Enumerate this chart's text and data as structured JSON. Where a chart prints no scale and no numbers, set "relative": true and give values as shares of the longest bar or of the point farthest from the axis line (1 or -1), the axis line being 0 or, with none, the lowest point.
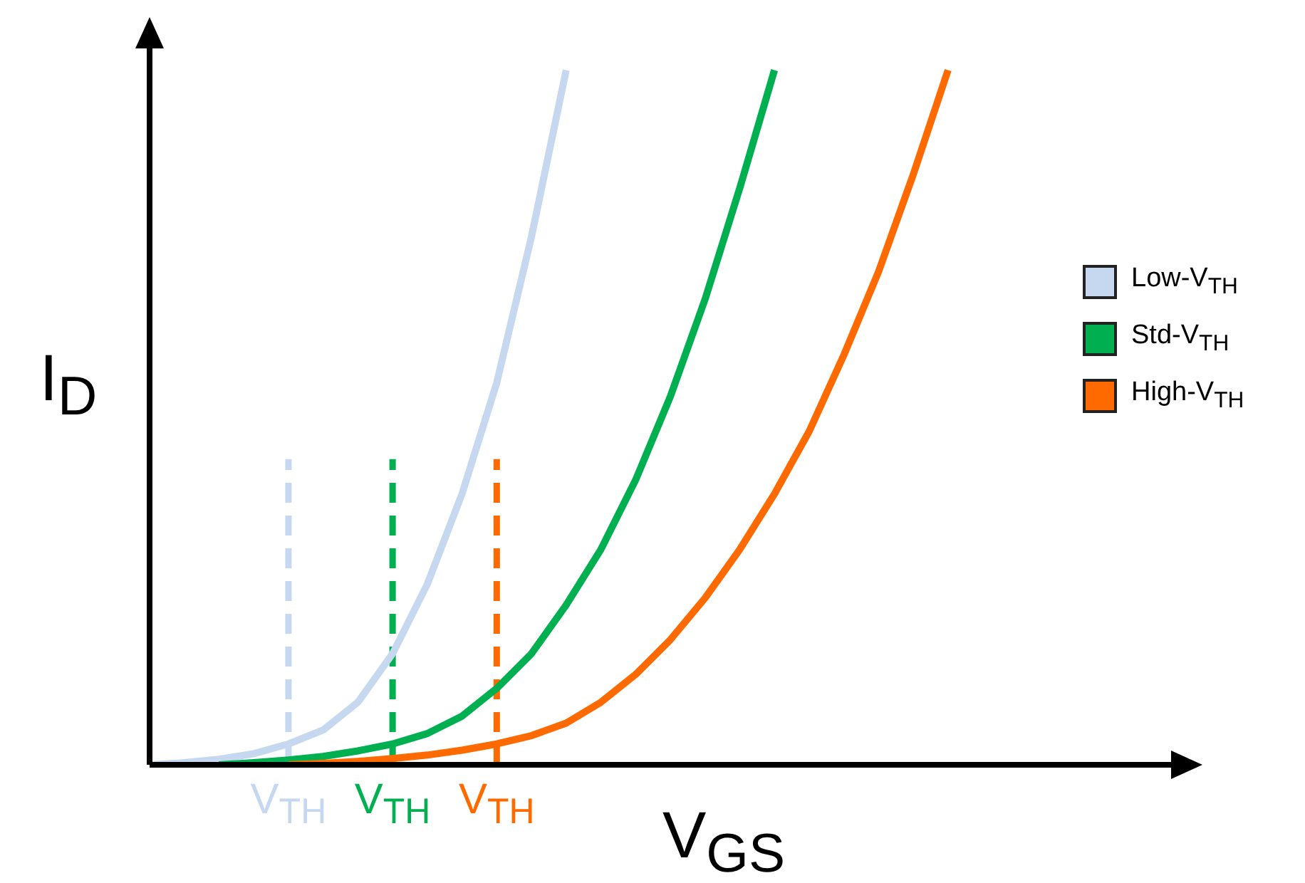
{
  "chart_data": {
    "type": "line",
    "relative": true,
    "xlabel": "V$_{GS}$",
    "ylabel": "I$_{D}$",
    "legend": "right",
    "categories": [
      null,
      null,
      null,
      null,
      null,
      null,
      null,
      null,
      null,
      null,
      null,
      null,
      null,
      null,
      null,
      null,
      null,
      null,
      null,
      null,
      null,
      null,
      null,
      null,
      null,
      null,
      null,
      null,
      null,
      null
    ],
    "series": [
      {
        "name": "Low-V$_{TH}$",
        "color": "#c5d8f0",
        "values": [
          0,
          0.003,
          0.008,
          0.016,
          0.03,
          0.05,
          0.09,
          0.16,
          0.26,
          0.39,
          0.55,
          0.76,
          1,
          null,
          null,
          null,
          null,
          null,
          null,
          null,
          null,
          null,
          null,
          null,
          null,
          null,
          null,
          null,
          null,
          null
        ]
      },
      {
        "name": "Std-V$_{TH}$",
        "color": "#00b050",
        "values": [
          null,
          null,
          0,
          0.003,
          0.007,
          0.012,
          0.02,
          0.03,
          0.045,
          0.07,
          0.11,
          0.16,
          0.23,
          0.31,
          0.41,
          0.53,
          0.67,
          0.83,
          1,
          null,
          null,
          null,
          null,
          null,
          null,
          null,
          null,
          null,
          null,
          null
        ]
      },
      {
        "name": "High-V$_{TH}$",
        "color": "#ff6a00",
        "values": [
          null,
          null,
          null,
          null,
          0,
          0.002,
          0.005,
          0.009,
          0.014,
          0.021,
          0.03,
          0.042,
          0.06,
          0.09,
          0.13,
          0.18,
          0.24,
          0.31,
          0.39,
          0.48,
          0.59,
          0.71,
          0.85,
          1,
          null,
          null,
          null,
          null,
          null,
          null
        ]
      }
    ],
    "annotations": [
      "V$_{TH}$",
      "V$_{TH}$",
      "V$_{TH}$"
    ]
  }
}
